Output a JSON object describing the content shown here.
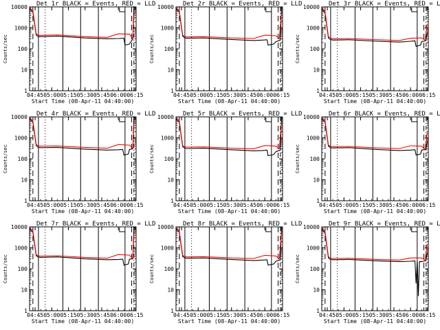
{
  "figure": {
    "background": "#ffffff",
    "axis_color": "#000000",
    "events_color": "#000000",
    "lld_color": "#ff0000"
  },
  "chart_data": [
    {
      "type": "line",
      "title": "Det 1r BLACK = Events, RED = LLD",
      "xlabel": "Start Time (08-Apr-11 04:40:00)",
      "ylabel": "Counts/sec",
      "xticks": [
        "04:45",
        "05:00",
        "05:15",
        "05:30",
        "05:45",
        "06:00",
        "06:15"
      ],
      "yticks": [
        "1",
        "10",
        "100",
        "1000",
        "10000"
      ],
      "ylim": [
        1,
        10000
      ],
      "yscale": "log",
      "series": [
        {
          "name": "Events",
          "color": "#000000",
          "x_minutes": [
            0,
            3,
            6,
            8,
            10,
            25,
            50,
            70,
            80,
            85,
            86,
            90,
            93,
            94,
            95
          ],
          "y": [
            8000,
            5500,
            450,
            380,
            380,
            400,
            330,
            300,
            310,
            320,
            150,
            170,
            300,
            10000,
            9000
          ]
        },
        {
          "name": "LLD",
          "color": "#ff0000",
          "x_minutes": [
            0,
            3,
            6,
            8,
            10,
            25,
            50,
            70,
            80,
            90,
            93,
            94,
            95
          ],
          "y": [
            9000,
            6500,
            520,
            440,
            440,
            460,
            380,
            350,
            520,
            500,
            300,
            4000,
            6000
          ]
        }
      ]
    },
    {
      "type": "line",
      "title": "Det 2r BLACK = Events, RED = LLD",
      "xlabel": "Start Time (08-Apr-11 04:40:00)",
      "ylabel": "Counts/sec",
      "xticks": [
        "04:45",
        "05:00",
        "05:15",
        "05:30",
        "05:45",
        "06:00",
        "06:15"
      ],
      "yticks": [
        "1",
        "10",
        "100",
        "1000",
        "10000"
      ],
      "ylim": [
        1,
        10000
      ],
      "yscale": "log",
      "series": [
        {
          "name": "Events",
          "color": "#000000",
          "x_minutes": [
            0,
            3,
            6,
            8,
            10,
            25,
            50,
            70,
            78,
            82,
            83,
            88,
            90,
            94,
            95
          ],
          "y": [
            8000,
            5500,
            400,
            330,
            320,
            330,
            280,
            250,
            260,
            270,
            150,
            170,
            220,
            260,
            9000
          ]
        },
        {
          "name": "LLD",
          "color": "#ff0000",
          "x_minutes": [
            0,
            3,
            6,
            8,
            10,
            25,
            50,
            70,
            80,
            90,
            93,
            95
          ],
          "y": [
            9000,
            6500,
            450,
            380,
            370,
            380,
            330,
            310,
            450,
            420,
            300,
            5000
          ]
        }
      ]
    },
    {
      "type": "line",
      "title": "Det 3r BLACK = Events, RED = LLD",
      "xlabel": "Start Time (08-Apr-11 04:40:00)",
      "ylabel": "Counts/sec",
      "xticks": [
        "04:45",
        "05:00",
        "05:15",
        "05:30",
        "05:45",
        "06:00",
        "06:15"
      ],
      "yticks": [
        "1",
        "10",
        "100",
        "1000",
        "10000"
      ],
      "ylim": [
        1,
        10000
      ],
      "yscale": "log",
      "series": [
        {
          "name": "Events",
          "color": "#000000",
          "x_minutes": [
            0,
            3,
            6,
            8,
            10,
            25,
            50,
            70,
            80,
            84,
            85,
            89,
            90,
            94,
            95
          ],
          "y": [
            8000,
            5000,
            330,
            280,
            260,
            270,
            230,
            210,
            230,
            240,
            130,
            150,
            220,
            250,
            600
          ]
        },
        {
          "name": "LLD",
          "color": "#ff0000",
          "x_minutes": [
            0,
            3,
            6,
            8,
            10,
            25,
            50,
            70,
            80,
            90,
            93,
            95
          ],
          "y": [
            9000,
            6000,
            380,
            320,
            300,
            310,
            270,
            250,
            320,
            330,
            260,
            1500
          ]
        }
      ]
    },
    {
      "type": "line",
      "title": "Det 4r BLACK = Events, RED = LLD",
      "xlabel": "Start Time (08-Apr-11 04:40:00)",
      "ylabel": "Counts/sec",
      "xticks": [
        "04:45",
        "05:00",
        "05:15",
        "05:30",
        "05:45",
        "06:00",
        "06:15"
      ],
      "yticks": [
        "1",
        "10",
        "100",
        "1000",
        "10000"
      ],
      "ylim": [
        1,
        10000
      ],
      "yscale": "log",
      "series": [
        {
          "name": "Events",
          "color": "#000000",
          "x_minutes": [
            0,
            3,
            6,
            8,
            10,
            25,
            50,
            70,
            80,
            84,
            85,
            89,
            90,
            93,
            94,
            95
          ],
          "y": [
            8000,
            5500,
            420,
            350,
            340,
            350,
            290,
            260,
            270,
            280,
            150,
            170,
            280,
            300,
            10000,
            9000
          ]
        },
        {
          "name": "LLD",
          "color": "#ff0000",
          "x_minutes": [
            0,
            3,
            6,
            8,
            10,
            25,
            50,
            70,
            80,
            90,
            93,
            94,
            95
          ],
          "y": [
            9000,
            6500,
            480,
            410,
            400,
            410,
            350,
            320,
            480,
            450,
            300,
            4500,
            6000
          ]
        }
      ]
    },
    {
      "type": "line",
      "title": "Det 5r BLACK = Events, RED = LLD",
      "xlabel": "Start Time (08-Apr-11 04:40:00)",
      "ylabel": "Counts/sec",
      "xticks": [
        "04:45",
        "05:00",
        "05:15",
        "05:30",
        "05:45",
        "06:00",
        "06:15"
      ],
      "yticks": [
        "1",
        "10",
        "100",
        "1000",
        "10000"
      ],
      "ylim": [
        1,
        10000
      ],
      "yscale": "log",
      "series": [
        {
          "name": "Events",
          "color": "#000000",
          "x_minutes": [
            0,
            3,
            6,
            8,
            10,
            25,
            50,
            70,
            78,
            82,
            83,
            88,
            90,
            94,
            95
          ],
          "y": [
            8000,
            5500,
            380,
            320,
            310,
            320,
            270,
            240,
            250,
            260,
            140,
            160,
            220,
            260,
            9000
          ]
        },
        {
          "name": "LLD",
          "color": "#ff0000",
          "x_minutes": [
            0,
            3,
            6,
            8,
            10,
            25,
            50,
            70,
            80,
            90,
            93,
            95
          ],
          "y": [
            9000,
            6500,
            430,
            370,
            360,
            370,
            320,
            300,
            430,
            400,
            300,
            5000
          ]
        }
      ]
    },
    {
      "type": "line",
      "title": "Det 6r BLACK = Events, RED = LLD",
      "xlabel": "Start Time (08-Apr-11 04:40:00)",
      "ylabel": "Counts/sec",
      "xticks": [
        "04:45",
        "05:00",
        "05:15",
        "05:30",
        "05:45",
        "06:00",
        "06:15"
      ],
      "yticks": [
        "1",
        "10",
        "100",
        "1000",
        "10000"
      ],
      "ylim": [
        1,
        10000
      ],
      "yscale": "log",
      "series": [
        {
          "name": "Events",
          "color": "#000000",
          "x_minutes": [
            0,
            3,
            6,
            8,
            10,
            25,
            50,
            70,
            80,
            84,
            85,
            89,
            90,
            94,
            95
          ],
          "y": [
            8000,
            5500,
            400,
            340,
            330,
            340,
            280,
            250,
            260,
            270,
            150,
            170,
            260,
            280,
            700
          ]
        },
        {
          "name": "LLD",
          "color": "#ff0000",
          "x_minutes": [
            0,
            3,
            6,
            8,
            10,
            25,
            50,
            70,
            80,
            90,
            93,
            95
          ],
          "y": [
            9000,
            6500,
            450,
            390,
            380,
            390,
            330,
            310,
            420,
            400,
            280,
            1800
          ]
        }
      ]
    },
    {
      "type": "line",
      "title": "Det 7r BLACK = Events, RED = LLD",
      "xlabel": "Start Time (08-Apr-11 04:40:00)",
      "ylabel": "Counts/sec",
      "xticks": [
        "04:45",
        "05:00",
        "05:15",
        "05:30",
        "05:45",
        "06:00",
        "06:15"
      ],
      "yticks": [
        "1",
        "10",
        "100",
        "1000",
        "10000"
      ],
      "ylim": [
        1,
        10000
      ],
      "yscale": "log",
      "series": [
        {
          "name": "Events",
          "color": "#000000",
          "x_minutes": [
            0,
            3,
            6,
            8,
            10,
            25,
            50,
            70,
            80,
            84,
            85,
            89,
            90,
            93,
            94,
            95
          ],
          "y": [
            8000,
            5500,
            420,
            360,
            350,
            370,
            300,
            270,
            280,
            290,
            150,
            170,
            290,
            300,
            10000,
            9000
          ]
        },
        {
          "name": "LLD",
          "color": "#ff0000",
          "x_minutes": [
            0,
            3,
            6,
            8,
            10,
            25,
            50,
            70,
            80,
            90,
            93,
            94,
            95
          ],
          "y": [
            9000,
            6500,
            470,
            410,
            400,
            420,
            350,
            320,
            480,
            450,
            300,
            4500,
            6000
          ]
        }
      ]
    },
    {
      "type": "line",
      "title": "Det 8r BLACK = Events, RED = LLD",
      "xlabel": "Start Time (08-Apr-11 04:40:00)",
      "ylabel": "Counts/sec",
      "xticks": [
        "04:45",
        "05:00",
        "05:15",
        "05:30",
        "05:45",
        "06:00",
        "06:15"
      ],
      "yticks": [
        "1",
        "10",
        "100",
        "1000",
        "10000"
      ],
      "ylim": [
        1,
        10000
      ],
      "yscale": "log",
      "series": [
        {
          "name": "Events",
          "color": "#000000",
          "x_minutes": [
            0,
            3,
            6,
            8,
            10,
            25,
            50,
            70,
            78,
            82,
            83,
            88,
            90,
            94,
            95
          ],
          "y": [
            8000,
            5500,
            390,
            330,
            320,
            330,
            280,
            250,
            260,
            270,
            150,
            170,
            230,
            270,
            9000
          ]
        },
        {
          "name": "LLD",
          "color": "#ff0000",
          "x_minutes": [
            0,
            3,
            6,
            8,
            10,
            25,
            50,
            70,
            80,
            90,
            93,
            95
          ],
          "y": [
            9000,
            6500,
            440,
            380,
            370,
            380,
            330,
            310,
            440,
            410,
            300,
            5000
          ]
        }
      ]
    },
    {
      "type": "line",
      "title": "Det 9r BLACK = Events, RED = LLD",
      "xlabel": "Start Time (08-Apr-11 04:40:00)",
      "ylabel": "Counts/sec",
      "xticks": [
        "04:45",
        "05:00",
        "05:15",
        "05:30",
        "05:45",
        "06:00",
        "06:15"
      ],
      "yticks": [
        "1",
        "10",
        "100",
        "1000",
        "10000"
      ],
      "ylim": [
        1,
        10000
      ],
      "yscale": "log",
      "series": [
        {
          "name": "Events",
          "color": "#000000",
          "x_minutes": [
            0,
            3,
            6,
            8,
            10,
            25,
            50,
            70,
            80,
            84,
            85,
            86,
            87,
            88,
            90,
            94,
            95
          ],
          "y": [
            8000,
            5000,
            330,
            280,
            270,
            280,
            240,
            220,
            230,
            240,
            20,
            230,
            5,
            220,
            220,
            250,
            600
          ]
        },
        {
          "name": "LLD",
          "color": "#ff0000",
          "x_minutes": [
            0,
            3,
            6,
            8,
            10,
            25,
            50,
            70,
            80,
            90,
            93,
            95
          ],
          "y": [
            9000,
            6000,
            380,
            320,
            310,
            320,
            280,
            260,
            330,
            330,
            260,
            1500
          ]
        }
      ]
    }
  ]
}
